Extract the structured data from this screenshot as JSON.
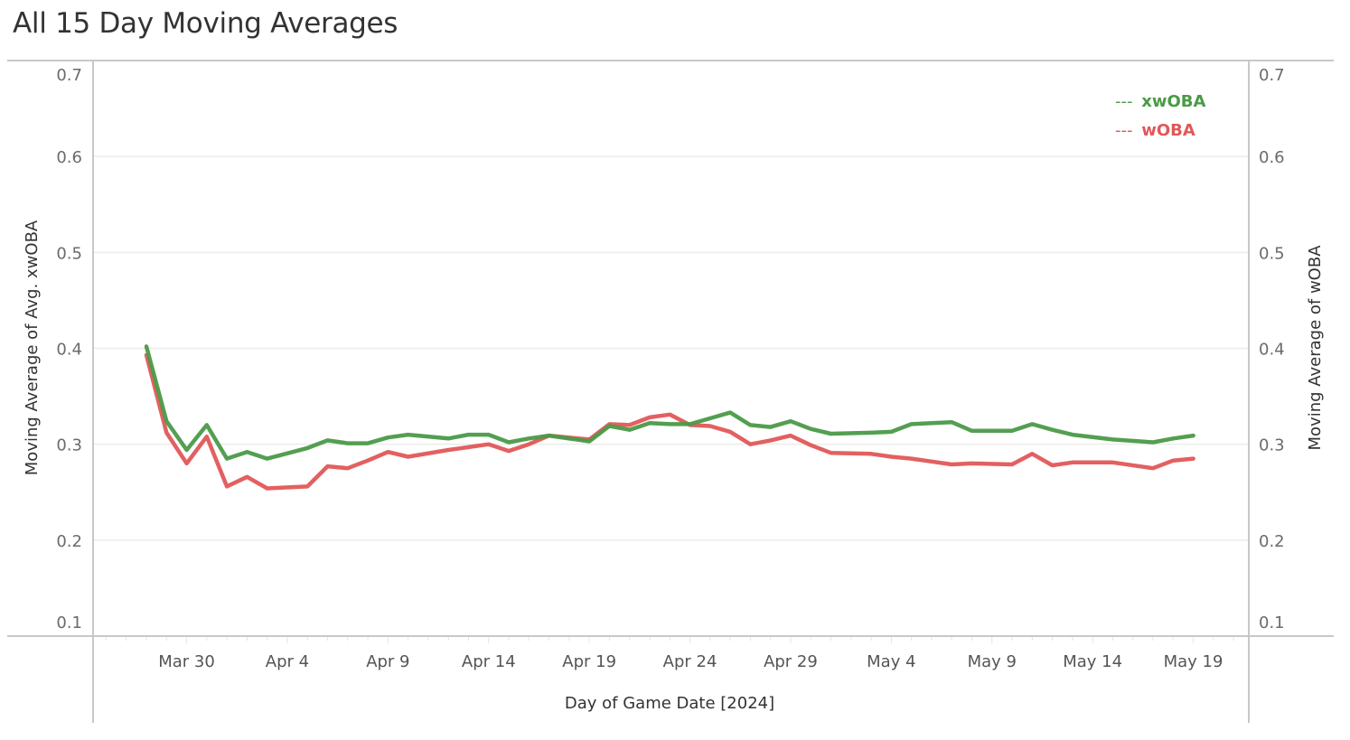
{
  "header": {
    "title": "All 15 Day Moving Averages"
  },
  "chart_data": {
    "type": "line",
    "title": "All 15 Day Moving Averages",
    "xlabel": "Day of Game Date [2024]",
    "ylabel_left": "Moving Average of Avg. xwOBA",
    "ylabel_right": "Moving Average of wOBA",
    "ylim": [
      0.1,
      0.7
    ],
    "yticks": [
      "0.7",
      "0.6",
      "0.5",
      "0.4",
      "0.3",
      "0.2",
      "0.1"
    ],
    "ytick_values": [
      0.7,
      0.6,
      0.5,
      0.4,
      0.3,
      0.2,
      0.1
    ],
    "xrange_days_from_mar28": [
      -2,
      55
    ],
    "xticks": [
      "Mar 30",
      "Apr 4",
      "Apr 9",
      "Apr 14",
      "Apr 19",
      "Apr 24",
      "Apr 29",
      "May 4",
      "May 9",
      "May 14",
      "May 19"
    ],
    "xtick_days": [
      2,
      7,
      12,
      17,
      22,
      27,
      32,
      37,
      42,
      47,
      52
    ],
    "grid": true,
    "legend_position": "top-right",
    "legend": [
      {
        "marker": "---",
        "label": "xwOBA",
        "color": "#4a9a48"
      },
      {
        "marker": "---",
        "label": "wOBA",
        "color": "#e15759"
      }
    ],
    "x": [
      "Mar 28",
      "Mar 29",
      "Mar 30",
      "Mar 31",
      "Apr 1",
      "Apr 2",
      "Apr 3",
      "Apr 5",
      "Apr 6",
      "Apr 7",
      "Apr 8",
      "Apr 9",
      "Apr 10",
      "Apr 12",
      "Apr 13",
      "Apr 14",
      "Apr 15",
      "Apr 16",
      "Apr 17",
      "Apr 19",
      "Apr 20",
      "Apr 21",
      "Apr 22",
      "Apr 23",
      "Apr 24",
      "Apr 25",
      "Apr 26",
      "Apr 27",
      "Apr 28",
      "Apr 29",
      "Apr 30",
      "May 1",
      "May 3",
      "May 4",
      "May 5",
      "May 7",
      "May 8",
      "May 10",
      "May 11",
      "May 12",
      "May 13",
      "May 15",
      "May 17",
      "May 18",
      "May 19"
    ],
    "x_days": [
      0,
      1,
      2,
      3,
      4,
      5,
      6,
      8,
      9,
      10,
      11,
      12,
      13,
      15,
      16,
      17,
      18,
      19,
      20,
      22,
      23,
      24,
      25,
      26,
      27,
      28,
      29,
      30,
      31,
      32,
      33,
      34,
      36,
      37,
      38,
      40,
      41,
      43,
      44,
      45,
      46,
      48,
      50,
      51,
      52
    ],
    "series": [
      {
        "name": "xwOBA",
        "color": "#4a9a48",
        "values": [
          0.402,
          0.324,
          0.294,
          0.32,
          0.285,
          0.292,
          0.285,
          0.296,
          0.304,
          0.301,
          0.301,
          0.307,
          0.31,
          0.306,
          0.31,
          0.31,
          0.302,
          0.306,
          0.309,
          0.303,
          0.319,
          0.315,
          0.322,
          0.321,
          0.321,
          0.327,
          0.333,
          0.32,
          0.318,
          0.324,
          0.316,
          0.311,
          0.312,
          0.313,
          0.321,
          0.323,
          0.314,
          0.314,
          0.321,
          0.315,
          0.31,
          0.305,
          0.302,
          0.306,
          0.309
        ]
      },
      {
        "name": "wOBA",
        "color": "#e15759",
        "values": [
          0.393,
          0.312,
          0.28,
          0.308,
          0.256,
          0.266,
          0.254,
          0.256,
          0.277,
          0.275,
          0.283,
          0.292,
          0.287,
          0.294,
          0.297,
          0.3,
          0.293,
          0.3,
          0.309,
          0.305,
          0.321,
          0.32,
          0.328,
          0.331,
          0.32,
          0.319,
          0.313,
          0.3,
          0.304,
          0.309,
          0.299,
          0.291,
          0.29,
          0.287,
          0.285,
          0.279,
          0.28,
          0.279,
          0.29,
          0.278,
          0.281,
          0.281,
          0.275,
          0.283,
          0.285
        ]
      }
    ]
  },
  "colors": {
    "gridline": "#ececec",
    "axis": "#c8c8c8"
  }
}
